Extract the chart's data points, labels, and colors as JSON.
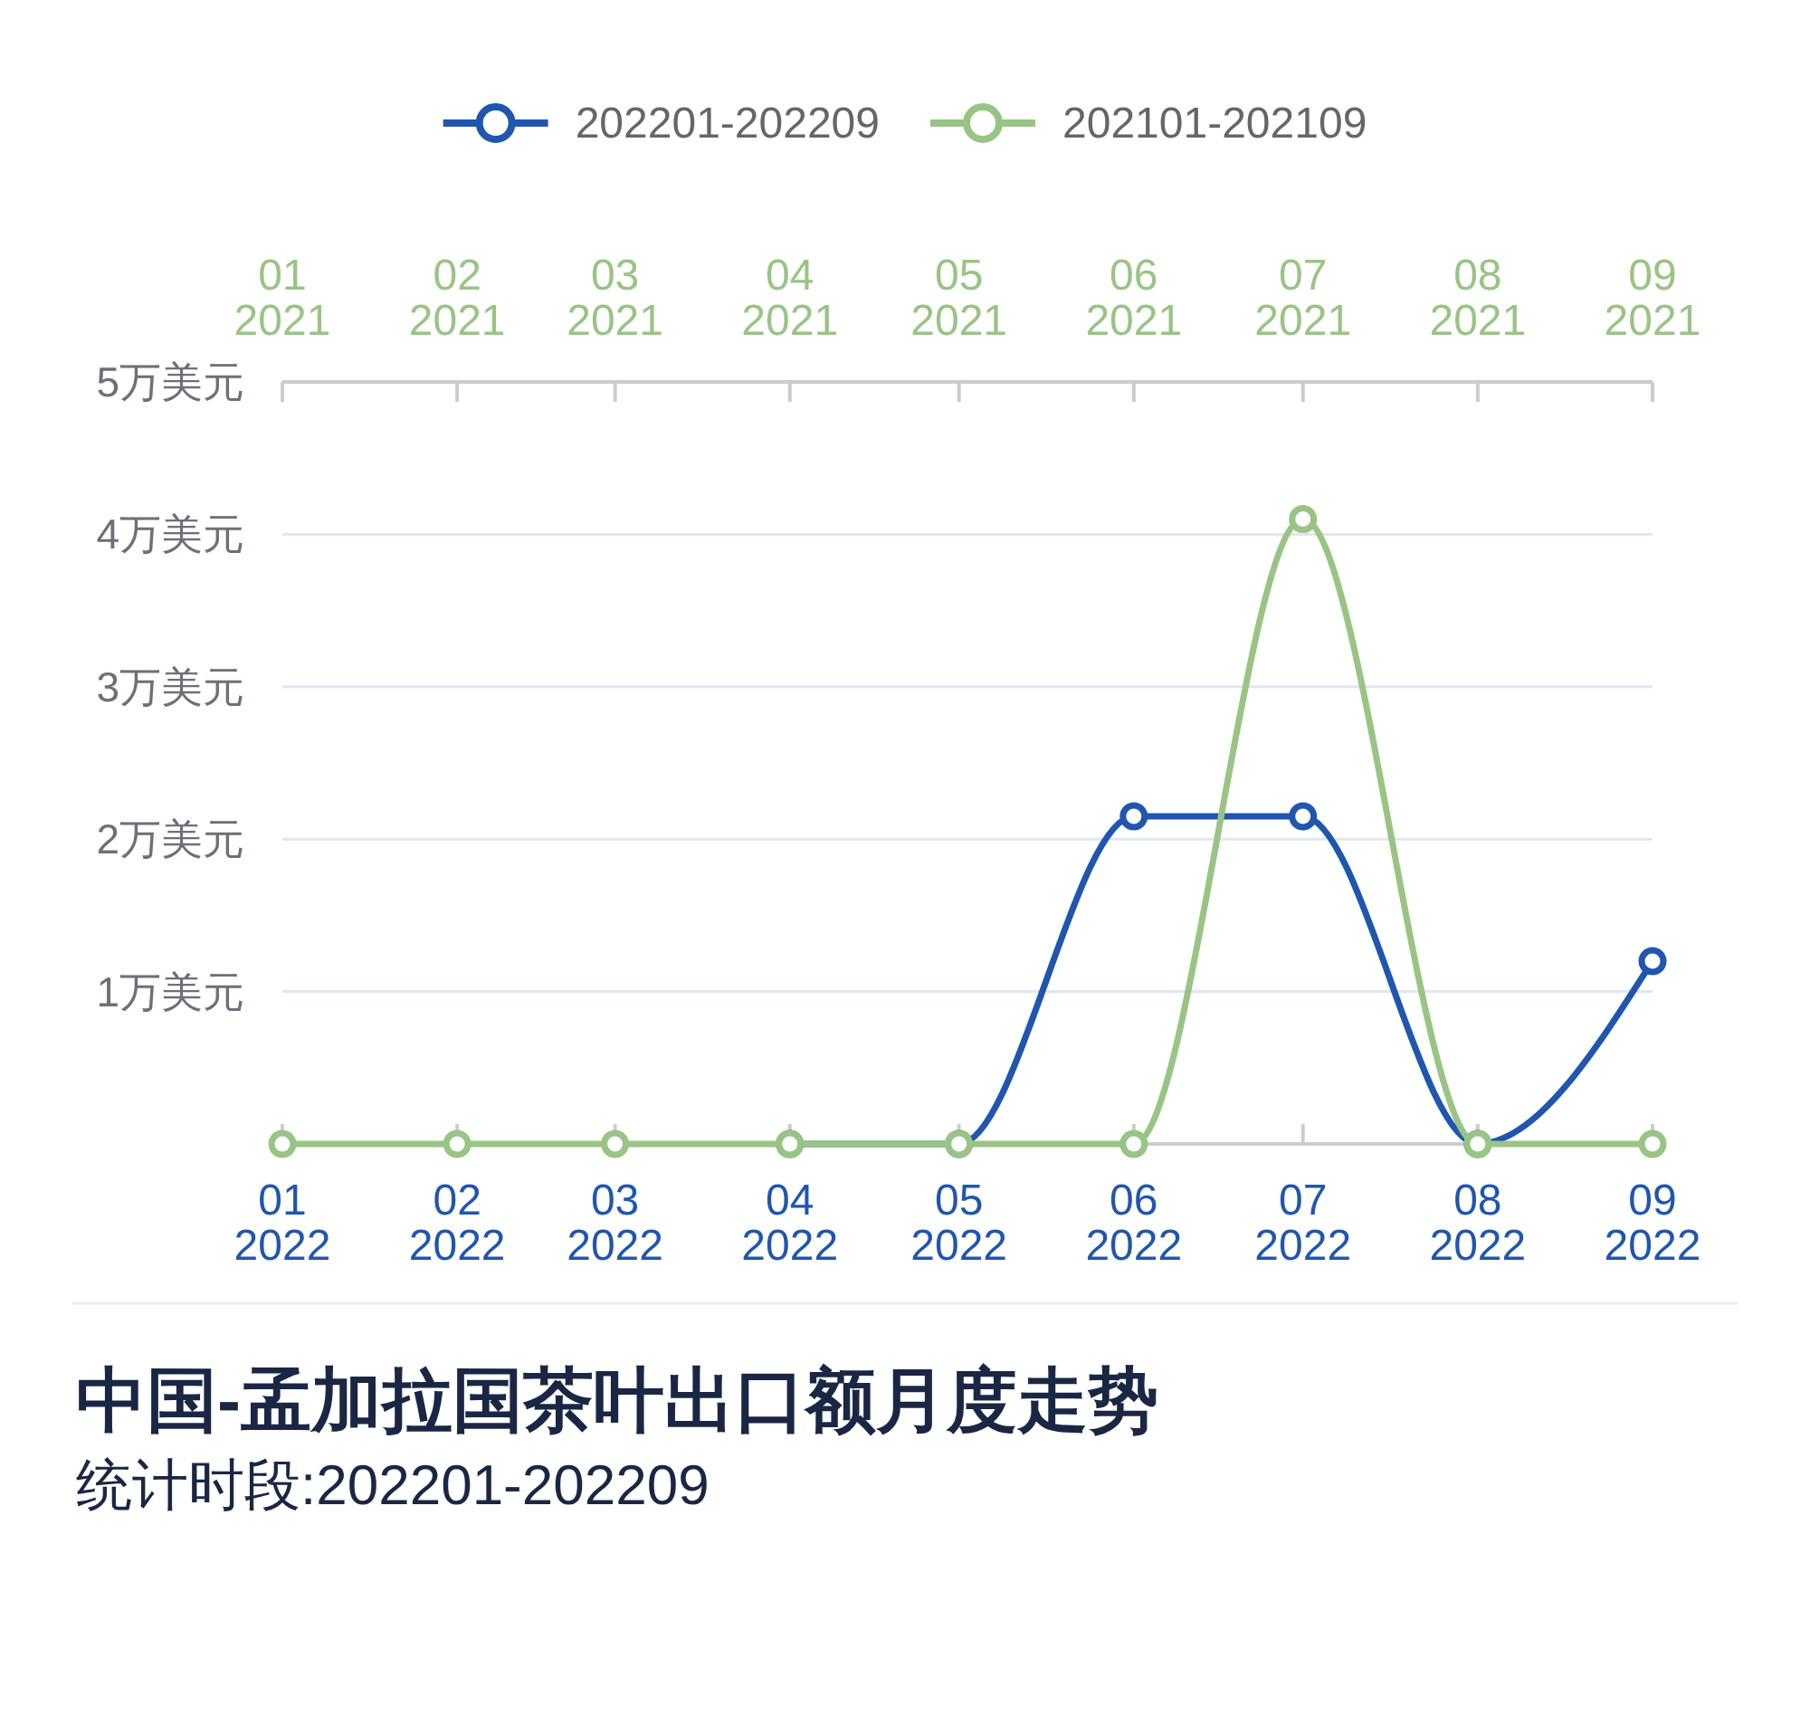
{
  "chart_data": {
    "type": "line",
    "title": "中国-孟加拉国茶叶出口额月度走势",
    "subtitle": "统计时段:202201-202209",
    "xlim": [
      "2022-01",
      "2022-09"
    ],
    "xticks": [
      {
        "value": "2022-01",
        "label": "01\n2022"
      },
      {
        "value": "2022-02",
        "label": "02\n2022"
      },
      {
        "value": "2022-03",
        "label": "03\n2022"
      },
      {
        "value": "2022-04",
        "label": "04\n2022"
      },
      {
        "value": "2022-05",
        "label": "05\n2022"
      },
      {
        "value": "2022-06",
        "label": "06\n2022"
      },
      {
        "value": "2022-07",
        "label": "07\n2022"
      },
      {
        "value": "2022-08",
        "label": "08\n2022"
      },
      {
        "value": "2022-09",
        "label": "09\n2022"
      }
    ],
    "x2lim": [
      "2021-01",
      "2021-09"
    ],
    "x2ticks": [
      {
        "value": "2021-01",
        "label": "01\n2021"
      },
      {
        "value": "2021-02",
        "label": "02\n2021"
      },
      {
        "value": "2021-03",
        "label": "03\n2021"
      },
      {
        "value": "2021-04",
        "label": "04\n2021"
      },
      {
        "value": "2021-05",
        "label": "05\n2021"
      },
      {
        "value": "2021-06",
        "label": "06\n2021"
      },
      {
        "value": "2021-07",
        "label": "07\n2021"
      },
      {
        "value": "2021-08",
        "label": "08\n2021"
      },
      {
        "value": "2021-09",
        "label": "09\n2021"
      }
    ],
    "ylim": [
      0,
      5
    ],
    "yticks": [
      {
        "value": 0,
        "label": null
      },
      {
        "value": 1,
        "label": "1万美元"
      },
      {
        "value": 2,
        "label": "2万美元"
      },
      {
        "value": 3,
        "label": "3万美元"
      },
      {
        "value": 4,
        "label": "4万美元"
      },
      {
        "value": 5,
        "label": "5万美元"
      }
    ],
    "series": [
      {
        "name": "202201-202209",
        "color": "#2056ae",
        "x": [
          "2022-04",
          "2022-05",
          "2022-06",
          "2022-07",
          "2022-08",
          "2022-09"
        ],
        "values": [
          0,
          0,
          2.15,
          2.15,
          0,
          1.2
        ]
      },
      {
        "name": "202101-202109",
        "color": "#99c485",
        "axis": "x2",
        "x": [
          "2021-01",
          "2021-02",
          "2021-03",
          "2021-04",
          "2021-05",
          "2021-06",
          "2021-07",
          "2021-08",
          "2021-09"
        ],
        "values": [
          0,
          0,
          0,
          0,
          0,
          0,
          4.1,
          0,
          0
        ]
      }
    ],
    "marker": "circle",
    "line_style": "solid",
    "grid": "y",
    "legend": "top"
  }
}
